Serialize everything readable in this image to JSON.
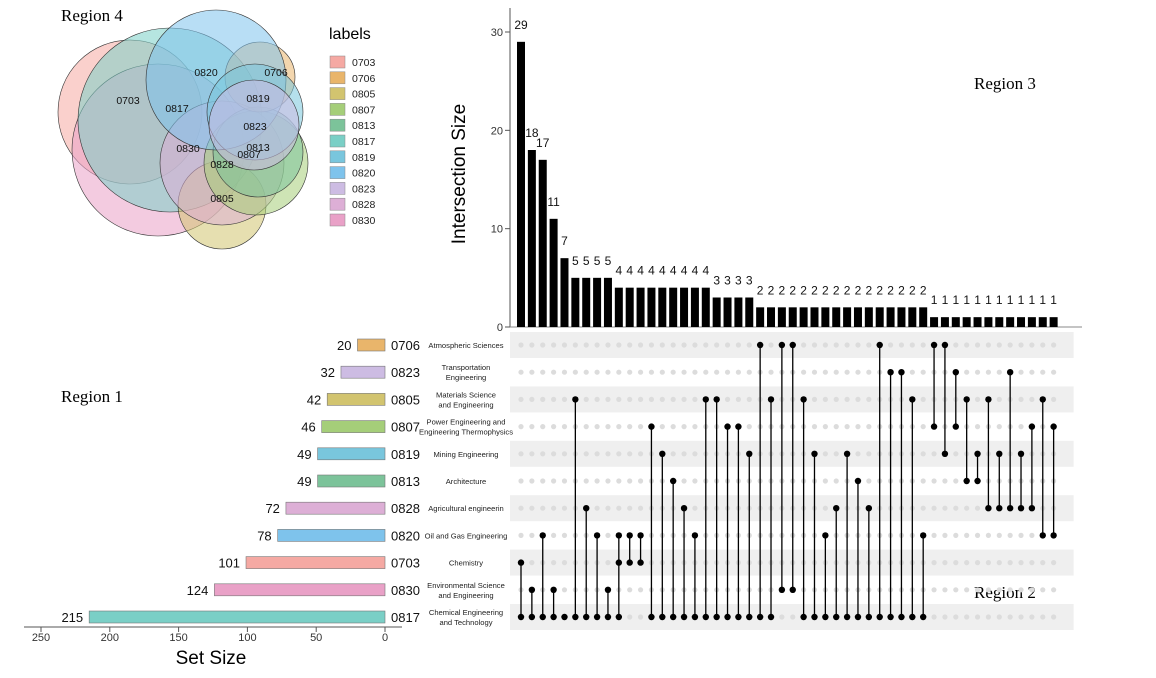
{
  "regions": {
    "r1": "Region 1",
    "r2": "Region 2",
    "r3": "Region 3",
    "r4": "Region 4"
  },
  "venn": {
    "legend_title": "labels",
    "sets": [
      {
        "code": "0703",
        "color": "#F5A9A3"
      },
      {
        "code": "0706",
        "color": "#E9B56B"
      },
      {
        "code": "0805",
        "color": "#D2C46F"
      },
      {
        "code": "0807",
        "color": "#A5CE79"
      },
      {
        "code": "0813",
        "color": "#7CC39A"
      },
      {
        "code": "0817",
        "color": "#7ACFC6"
      },
      {
        "code": "0819",
        "color": "#79C6DD"
      },
      {
        "code": "0820",
        "color": "#7EC3EC"
      },
      {
        "code": "0823",
        "color": "#CDBCE3"
      },
      {
        "code": "0828",
        "color": "#DDAFD6"
      },
      {
        "code": "0830",
        "color": "#E9A1C7"
      }
    ]
  },
  "chart_data": {
    "type": "upset",
    "ylabel": "Intersection Size",
    "xlabel_sets": "Set Size",
    "y_ticks": [
      0,
      10,
      20,
      30
    ],
    "ylim": [
      0,
      30
    ],
    "set_axis_ticks": [
      250,
      200,
      150,
      100,
      50,
      0
    ],
    "set_axis_range": [
      0,
      250
    ],
    "sets": [
      {
        "code": "0706",
        "name": "Atmospheric Sciences",
        "size": 20,
        "color": "#E9B56B"
      },
      {
        "code": "0823",
        "name": "Transportation Engineering",
        "size": 32,
        "color": "#CDBCE3"
      },
      {
        "code": "0805",
        "name": "Materials Science and Engineering",
        "size": 42,
        "color": "#D2C46F"
      },
      {
        "code": "0807",
        "name": "Power Engineering and Engineering Thermophysics",
        "size": 46,
        "color": "#A5CE79"
      },
      {
        "code": "0819",
        "name": "Mining Engineering",
        "size": 49,
        "color": "#79C6DD"
      },
      {
        "code": "0813",
        "name": "Architecture",
        "size": 49,
        "color": "#7CC39A"
      },
      {
        "code": "0828",
        "name": "Agricultural engineerin",
        "size": 72,
        "color": "#DDAFD6"
      },
      {
        "code": "0820",
        "name": "Oil and Gas Engineering",
        "size": 78,
        "color": "#7EC3EC"
      },
      {
        "code": "0703",
        "name": "Chemistry",
        "size": 101,
        "color": "#F5A9A3"
      },
      {
        "code": "0830",
        "name": "Environmental Science and Engineering",
        "size": 124,
        "color": "#E9A1C7"
      },
      {
        "code": "0817",
        "name": "Chemical Engineering and Technology",
        "size": 215,
        "color": "#7ACFC6"
      }
    ],
    "intersections": [
      {
        "size": 29,
        "sets": [
          10,
          8
        ]
      },
      {
        "size": 18,
        "sets": [
          10,
          9
        ]
      },
      {
        "size": 17,
        "sets": [
          10,
          7
        ]
      },
      {
        "size": 11,
        "sets": [
          10,
          9
        ]
      },
      {
        "size": 7,
        "sets": [
          10
        ]
      },
      {
        "size": 5,
        "sets": [
          10,
          2
        ]
      },
      {
        "size": 5,
        "sets": [
          10,
          6
        ]
      },
      {
        "size": 5,
        "sets": [
          10,
          7
        ]
      },
      {
        "size": 5,
        "sets": [
          10,
          9
        ]
      },
      {
        "size": 4,
        "sets": [
          10,
          8,
          7
        ]
      },
      {
        "size": 4,
        "sets": [
          8,
          7
        ]
      },
      {
        "size": 4,
        "sets": [
          8,
          7
        ]
      },
      {
        "size": 4,
        "sets": [
          10,
          3
        ]
      },
      {
        "size": 4,
        "sets": [
          10,
          4
        ]
      },
      {
        "size": 4,
        "sets": [
          10,
          5
        ]
      },
      {
        "size": 4,
        "sets": [
          10,
          6
        ]
      },
      {
        "size": 4,
        "sets": [
          10,
          7
        ]
      },
      {
        "size": 4,
        "sets": [
          10,
          2
        ]
      },
      {
        "size": 3,
        "sets": [
          10,
          2
        ]
      },
      {
        "size": 3,
        "sets": [
          10,
          3
        ]
      },
      {
        "size": 3,
        "sets": [
          10,
          3
        ]
      },
      {
        "size": 3,
        "sets": [
          10,
          4
        ]
      },
      {
        "size": 2,
        "sets": [
          10,
          0
        ]
      },
      {
        "size": 2,
        "sets": [
          10,
          2
        ]
      },
      {
        "size": 2,
        "sets": [
          9,
          0
        ]
      },
      {
        "size": 2,
        "sets": [
          9,
          0
        ]
      },
      {
        "size": 2,
        "sets": [
          10,
          2
        ]
      },
      {
        "size": 2,
        "sets": [
          10,
          4
        ]
      },
      {
        "size": 2,
        "sets": [
          10,
          7
        ]
      },
      {
        "size": 2,
        "sets": [
          10,
          6
        ]
      },
      {
        "size": 2,
        "sets": [
          10,
          4
        ]
      },
      {
        "size": 2,
        "sets": [
          10,
          5
        ]
      },
      {
        "size": 2,
        "sets": [
          10,
          6
        ]
      },
      {
        "size": 2,
        "sets": [
          10,
          0
        ]
      },
      {
        "size": 2,
        "sets": [
          10,
          1
        ]
      },
      {
        "size": 2,
        "sets": [
          10,
          1
        ]
      },
      {
        "size": 2,
        "sets": [
          10,
          2
        ]
      },
      {
        "size": 2,
        "sets": [
          10,
          7
        ]
      },
      {
        "size": 1,
        "sets": [
          0,
          3
        ]
      },
      {
        "size": 1,
        "sets": [
          0,
          4
        ]
      },
      {
        "size": 1,
        "sets": [
          1,
          3
        ]
      },
      {
        "size": 1,
        "sets": [
          2,
          5
        ]
      },
      {
        "size": 1,
        "sets": [
          4,
          5
        ]
      },
      {
        "size": 1,
        "sets": [
          2,
          6
        ]
      },
      {
        "size": 1,
        "sets": [
          4,
          6
        ]
      },
      {
        "size": 1,
        "sets": [
          1,
          6
        ]
      },
      {
        "size": 1,
        "sets": [
          4,
          6
        ]
      },
      {
        "size": 1,
        "sets": [
          3,
          6
        ]
      },
      {
        "size": 1,
        "sets": [
          2,
          7
        ]
      },
      {
        "size": 1,
        "sets": [
          3,
          7
        ]
      }
    ]
  }
}
